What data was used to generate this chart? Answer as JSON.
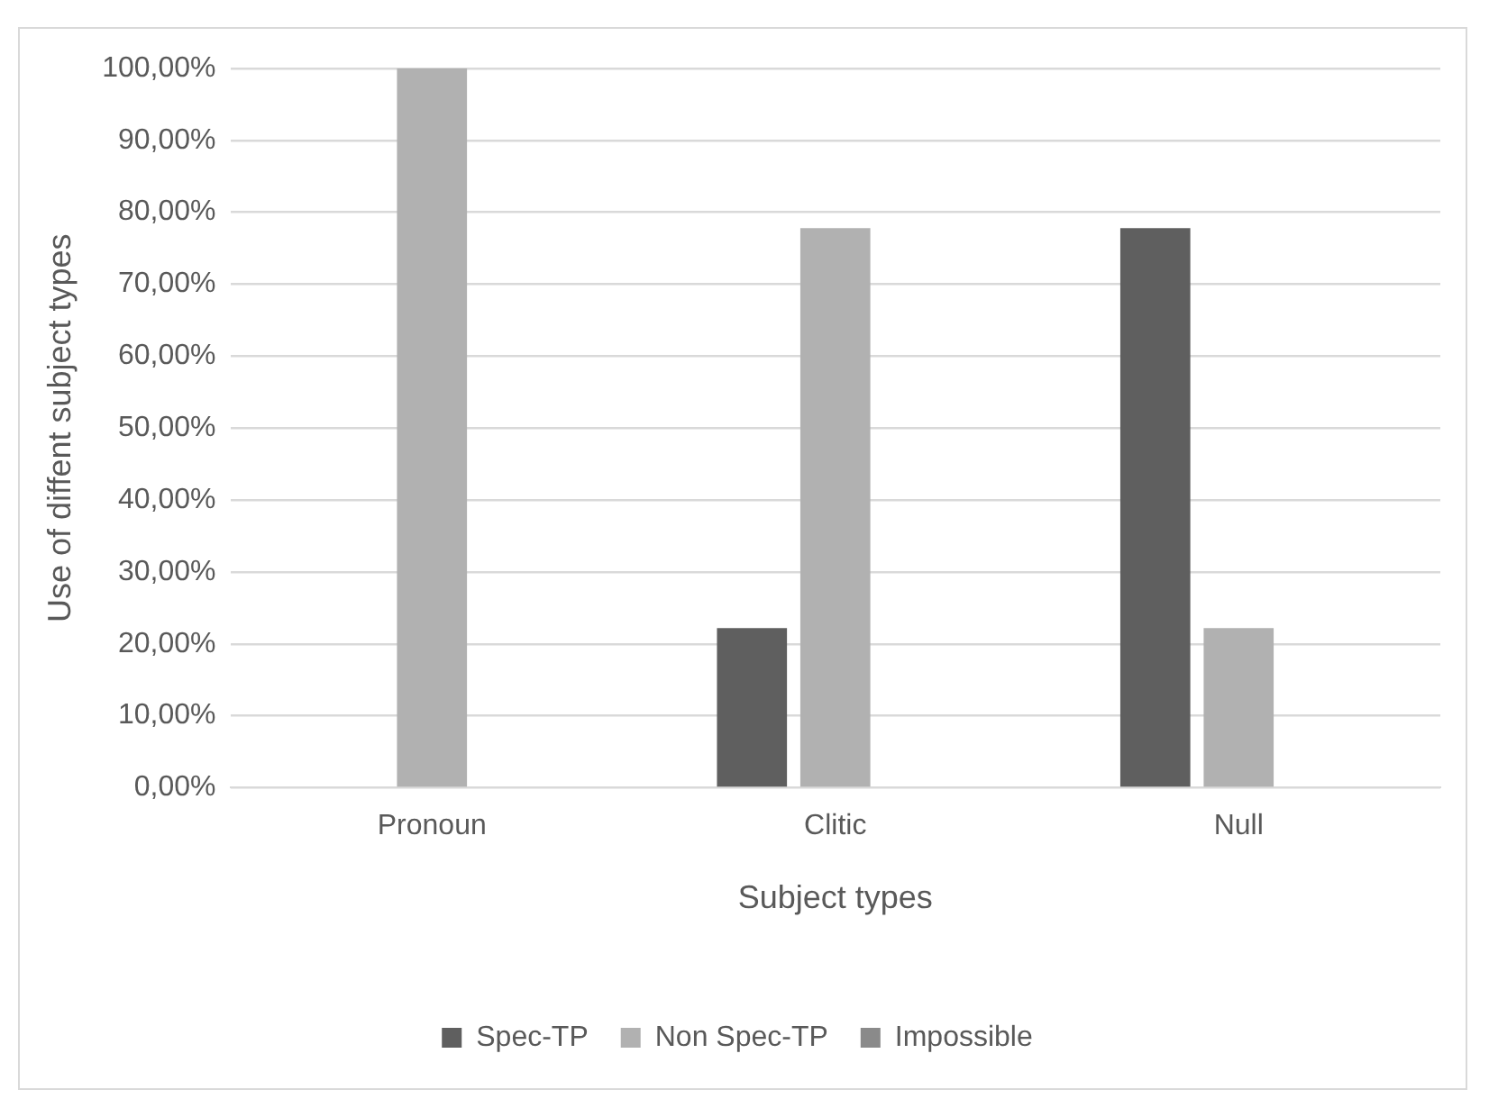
{
  "chart_data": {
    "type": "bar",
    "xlabel": "Subject types",
    "ylabel": "Use of diffent subject types",
    "categories": [
      "Pronoun",
      "Clitic",
      "Null"
    ],
    "series": [
      {
        "name": "Spec-TP",
        "color": "#5f5f5f",
        "values": [
          0,
          22.2,
          77.8
        ]
      },
      {
        "name": "Non Spec-TP",
        "color": "#b1b1b1",
        "values": [
          100,
          77.8,
          22.2
        ]
      },
      {
        "name": "Impossible",
        "color": "#8a8a8a",
        "values": [
          0,
          0,
          0
        ]
      }
    ],
    "ylim": [
      0,
      100
    ],
    "yticks": [
      {
        "value": 0,
        "label": "0,00%"
      },
      {
        "value": 10,
        "label": "10,00%"
      },
      {
        "value": 20,
        "label": "20,00%"
      },
      {
        "value": 30,
        "label": "30,00%"
      },
      {
        "value": 40,
        "label": "40,00%"
      },
      {
        "value": 50,
        "label": "50,00%"
      },
      {
        "value": 60,
        "label": "60,00%"
      },
      {
        "value": 70,
        "label": "70,00%"
      },
      {
        "value": 80,
        "label": "80,00%"
      },
      {
        "value": 90,
        "label": "90,00%"
      },
      {
        "value": 100,
        "label": "100,00%"
      }
    ],
    "grid": "y",
    "legend": "bottom"
  }
}
